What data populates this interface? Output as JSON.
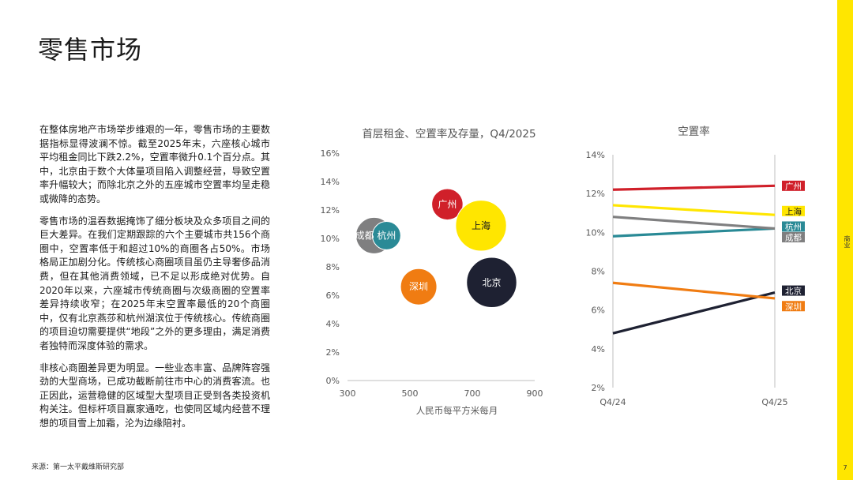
{
  "page": {
    "title": "零售市场",
    "side_tab": "商业",
    "page_number": "7",
    "source": "来源：第一太平戴维斯研究部",
    "paragraphs": [
      "在整体房地产市场举步维艰的一年，零售市场的主要数据指标显得波澜不惊。截至2025年末，六座核心城市平均租金同比下跌2.2%，空置率微升0.1个百分点。其中，北京由于数个大体量项目陷入调整经营，导致空置率升幅较大；而除北京之外的五座城市空置率均呈走稳或微降的态势。",
      "零售市场的温吞数据掩饰了细分板块及众多项目之间的巨大差异。在我们定期跟踪的六个主要城市共156个商圈中，空置率低于和超过10%的商圈各占50%。市场格局正加剧分化。传统核心商圈项目虽仍主导奢侈品消费，但在其他消费领域，已不足以形成绝对优势。自2020年以来，六座城市传统商圈与次级商圈的空置率差异持续收窄；在2025年末空置率最低的20个商圈中，仅有北京燕莎和杭州湖滨位于传统核心。传统商圈的项目迫切需要提供“地段”之外的更多理由，满足消费者独特而深度体验的需求。",
      "非核心商圈差异更为明显。一些业态丰富、品牌阵容强劲的大型商场，已成功截断前往市中心的消费客流。也正因此，运营稳健的区域型大型项目正受到各类投资机构关注。但标杆项目赢家通吃，也使同区域内经营不理想的项目雪上加霜，沦为边缘陪衬。"
    ]
  },
  "chart_data": [
    {
      "type": "scatter",
      "title": "首层租金、空置率及存量，Q4/2025",
      "xlabel": "人民币每平方米每月",
      "ylabel": "",
      "xlim": [
        300,
        900
      ],
      "ylim": [
        0,
        16
      ],
      "xticks": [
        300,
        500,
        700,
        900
      ],
      "yticks": [
        0,
        2,
        4,
        6,
        8,
        10,
        12,
        14,
        16
      ],
      "ytick_labels": [
        "0%",
        "2%",
        "4%",
        "6%",
        "8%",
        "10%",
        "12%",
        "14%",
        "16%"
      ],
      "grid": false,
      "bubble_size_meaning": "存量",
      "points": [
        {
          "label": "成都",
          "x": 385,
          "y": 10.2,
          "size": 1.0,
          "color": "#7f7f80"
        },
        {
          "label": "杭州",
          "x": 425,
          "y": 10.2,
          "size": 0.78,
          "color": "#2a8a96"
        },
        {
          "label": "广州",
          "x": 620,
          "y": 12.4,
          "size": 0.86,
          "color": "#d0202a"
        },
        {
          "label": "上海",
          "x": 728,
          "y": 10.9,
          "size": 1.4,
          "color": "#ffe600"
        },
        {
          "label": "深圳",
          "x": 528,
          "y": 6.6,
          "size": 1.0,
          "color": "#f07c12"
        },
        {
          "label": "北京",
          "x": 762,
          "y": 6.9,
          "size": 1.38,
          "color": "#1e2132"
        }
      ]
    },
    {
      "type": "line",
      "title": "空置率",
      "categories": [
        "Q4/24",
        "Q4/25"
      ],
      "ylim": [
        2,
        14
      ],
      "yticks": [
        2,
        4,
        6,
        8,
        10,
        12,
        14
      ],
      "ytick_labels": [
        "2%",
        "4%",
        "6%",
        "8%",
        "10%",
        "12%",
        "14%"
      ],
      "grid": false,
      "series": [
        {
          "name": "广州",
          "values": [
            12.2,
            12.4
          ],
          "color": "#d0202a"
        },
        {
          "name": "上海",
          "values": [
            11.4,
            10.9
          ],
          "color": "#ffe600"
        },
        {
          "name": "杭州",
          "values": [
            9.8,
            10.2
          ],
          "color": "#2a8a96"
        },
        {
          "name": "成都",
          "values": [
            10.8,
            10.2
          ],
          "color": "#7f7f80"
        },
        {
          "name": "北京",
          "values": [
            4.8,
            6.9
          ],
          "color": "#1e2132"
        },
        {
          "name": "深圳",
          "values": [
            7.4,
            6.6
          ],
          "color": "#f07c12"
        }
      ],
      "legend_labels": [
        {
          "name": "广州",
          "y": 12.4,
          "color": "#d0202a"
        },
        {
          "name": "上海",
          "y": 11.1,
          "color": "#ffe600"
        },
        {
          "name": "杭州",
          "y": 10.3,
          "color": "#2a8a96"
        },
        {
          "name": "成都",
          "y": 9.75,
          "color": "#7f7f80"
        },
        {
          "name": "北京",
          "y": 7.0,
          "color": "#1e2132"
        },
        {
          "name": "深圳",
          "y": 6.2,
          "color": "#f07c12"
        }
      ]
    }
  ]
}
